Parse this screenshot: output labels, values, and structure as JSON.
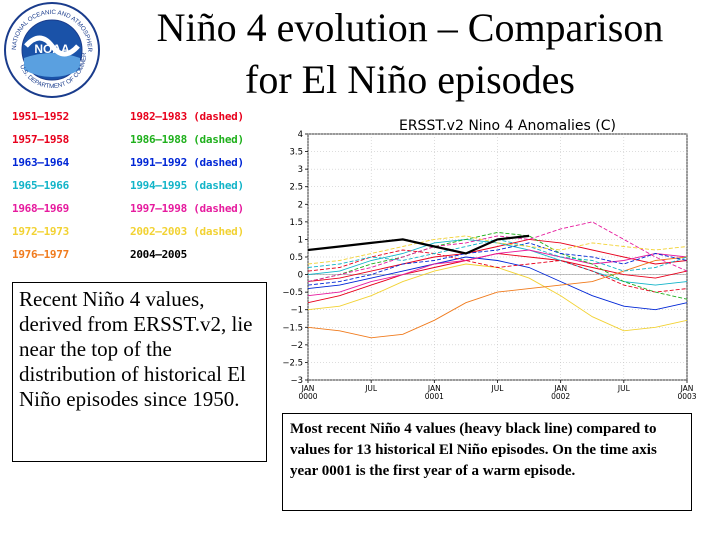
{
  "header": {
    "title_line1": "Niño 4 evolution – Comparison",
    "title_line2": "for El Niño episodes",
    "logo_text": "NOAA",
    "logo_ring_top": "NATIONAL OCEANIC AND ATMOSPHERIC ADMINISTRATION",
    "logo_ring_bottom": "U.S. DEPARTMENT OF COMMERCE"
  },
  "legend": {
    "items": [
      {
        "label": "1951–1952",
        "color": "#e8001c"
      },
      {
        "label": "1957–1958",
        "color": "#e8001c"
      },
      {
        "label": "1963–1964",
        "color": "#0026d6"
      },
      {
        "label": "1965–1966",
        "color": "#12b4c8"
      },
      {
        "label": "1968–1969",
        "color": "#e61b9e"
      },
      {
        "label": "1972–1973",
        "color": "#f2d233"
      },
      {
        "label": "1976–1977",
        "color": "#f07b1d"
      },
      {
        "label": "1982–1983 (dashed)",
        "color": "#e8001c"
      },
      {
        "label": "1986–1988 (dashed)",
        "color": "#1fb01c"
      },
      {
        "label": "1991–1992 (dashed)",
        "color": "#0026d6"
      },
      {
        "label": "1994–1995 (dashed)",
        "color": "#12b4c8"
      },
      {
        "label": "1997–1998 (dashed)",
        "color": "#e61b9e"
      },
      {
        "label": "2002–2003 (dashed)",
        "color": "#f2d233"
      },
      {
        "label": "2004–2005",
        "color": "#000000"
      }
    ]
  },
  "description": "Recent Niño 4 values, derived from ERSST.v2, lie near the top of the distribution of historical El Niño episodes since 1950.",
  "caption": "Most recent Niño 4 values (heavy black line) compared to values for 13 historical El Niño episodes. On the time axis year 0001 is the first year of a warm episode.",
  "chart_data": {
    "type": "line",
    "title": "ERSST.v2 Nino 4 Anomalies (C)",
    "xlabel": "",
    "ylabel": "",
    "ylim": [
      -3,
      4
    ],
    "yticks": [
      -3,
      -2.5,
      -2,
      -1.5,
      -1,
      -0.5,
      0,
      0.5,
      1,
      1.5,
      2,
      2.5,
      3,
      3.5,
      4
    ],
    "ytick_labels": [
      "−3",
      "−2.5",
      "−2",
      "−1.5",
      "−1",
      "−0.5",
      "0",
      "0.5",
      "1",
      "1.5",
      "2",
      "2.5",
      "3",
      "3.5",
      "4"
    ],
    "xlim": [
      0,
      36
    ],
    "xticks": [
      {
        "m": 0,
        "l1": "JAN",
        "l2": "0000"
      },
      {
        "m": 6,
        "l1": "JUL",
        "l2": ""
      },
      {
        "m": 12,
        "l1": "JAN",
        "l2": "0001"
      },
      {
        "m": 18,
        "l1": "JUL",
        "l2": ""
      },
      {
        "m": 24,
        "l1": "JAN",
        "l2": "0002"
      },
      {
        "m": 30,
        "l1": "JUL",
        "l2": ""
      },
      {
        "m": 36,
        "l1": "JAN",
        "l2": "0003"
      }
    ],
    "x_months": [
      0,
      3,
      6,
      9,
      12,
      15,
      18,
      21,
      24,
      27,
      30,
      33,
      36
    ],
    "series": [
      {
        "name": "1951-1952",
        "color": "#e8001c",
        "dashed": false,
        "values": [
          -0.8,
          -0.6,
          -0.3,
          0.0,
          0.2,
          0.4,
          0.6,
          0.5,
          0.4,
          0.2,
          0.0,
          -0.1,
          0.1
        ]
      },
      {
        "name": "1957-1958",
        "color": "#e8001c",
        "dashed": false,
        "values": [
          -0.2,
          -0.1,
          0.1,
          0.3,
          0.5,
          0.6,
          0.8,
          1.0,
          0.9,
          0.7,
          0.5,
          0.3,
          0.4
        ]
      },
      {
        "name": "1963-1964",
        "color": "#0026d6",
        "dashed": false,
        "values": [
          -0.4,
          -0.3,
          -0.1,
          0.1,
          0.3,
          0.5,
          0.4,
          0.2,
          -0.2,
          -0.6,
          -0.9,
          -1.0,
          -0.8
        ]
      },
      {
        "name": "1965-1966",
        "color": "#12b4c8",
        "dashed": false,
        "values": [
          0.0,
          0.1,
          0.4,
          0.6,
          0.9,
          1.0,
          0.9,
          0.7,
          0.4,
          0.1,
          -0.2,
          -0.3,
          -0.2
        ]
      },
      {
        "name": "1968-1969",
        "color": "#e61b9e",
        "dashed": false,
        "values": [
          -0.6,
          -0.5,
          -0.2,
          0.0,
          0.3,
          0.4,
          0.6,
          0.7,
          0.5,
          0.3,
          0.4,
          0.6,
          0.5
        ]
      },
      {
        "name": "1972-1973",
        "color": "#f2d233",
        "dashed": false,
        "values": [
          -1.0,
          -0.9,
          -0.6,
          -0.2,
          0.1,
          0.3,
          0.2,
          -0.1,
          -0.6,
          -1.2,
          -1.6,
          -1.5,
          -1.3
        ]
      },
      {
        "name": "1976-1977",
        "color": "#f07b1d",
        "dashed": false,
        "values": [
          -1.5,
          -1.6,
          -1.8,
          -1.7,
          -1.3,
          -0.8,
          -0.5,
          -0.4,
          -0.3,
          -0.2,
          0.1,
          0.4,
          0.5
        ]
      },
      {
        "name": "1982-1983",
        "color": "#e8001c",
        "dashed": true,
        "values": [
          0.1,
          0.2,
          0.5,
          0.7,
          0.6,
          0.4,
          0.2,
          0.3,
          0.4,
          0.1,
          -0.3,
          -0.5,
          -0.4
        ]
      },
      {
        "name": "1986-1988",
        "color": "#1fb01c",
        "dashed": true,
        "values": [
          -0.2,
          0.0,
          0.3,
          0.5,
          0.8,
          1.0,
          1.2,
          1.1,
          0.6,
          0.3,
          -0.2,
          -0.5,
          -0.7
        ]
      },
      {
        "name": "1991-1992",
        "color": "#0026d6",
        "dashed": true,
        "values": [
          -0.3,
          -0.2,
          0.0,
          0.3,
          0.4,
          0.6,
          0.7,
          0.9,
          0.6,
          0.5,
          0.3,
          0.6,
          0.4
        ]
      },
      {
        "name": "1994-1995",
        "color": "#12b4c8",
        "dashed": true,
        "values": [
          0.2,
          0.3,
          0.5,
          0.4,
          0.6,
          0.8,
          1.0,
          0.8,
          0.5,
          0.4,
          0.1,
          0.2,
          0.5
        ]
      },
      {
        "name": "1997-1998",
        "color": "#e61b9e",
        "dashed": true,
        "values": [
          -0.2,
          0.0,
          0.2,
          0.5,
          0.8,
          0.9,
          1.1,
          1.0,
          1.3,
          1.5,
          1.0,
          0.5,
          0.1
        ]
      },
      {
        "name": "2002-2003",
        "color": "#f2d233",
        "dashed": true,
        "values": [
          0.3,
          0.4,
          0.6,
          0.8,
          1.0,
          1.1,
          0.9,
          0.8,
          0.7,
          0.9,
          0.8,
          0.7,
          0.8
        ]
      },
      {
        "name": "2004-2005",
        "color": "#000000",
        "dashed": false,
        "bold": true,
        "values": [
          0.7,
          0.8,
          0.9,
          1.0,
          0.8,
          0.6,
          1.0,
          1.1,
          null,
          null,
          null,
          null,
          null
        ]
      }
    ]
  }
}
